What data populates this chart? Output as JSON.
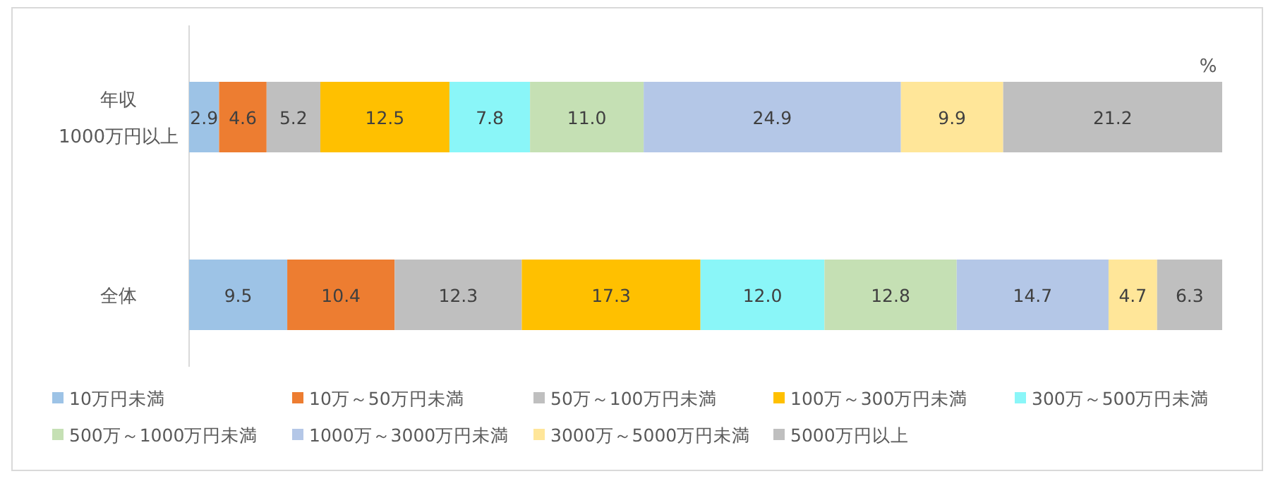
{
  "chart_data": {
    "type": "bar",
    "orientation": "horizontal",
    "stacked": true,
    "categories": [
      "年収\n1000万円以上",
      "全体"
    ],
    "series": [
      {
        "name": "10万円未満",
        "color": "#9dc3e6",
        "values": [
          2.9,
          9.5
        ],
        "value_labels": [
          "2.9",
          "9.5"
        ]
      },
      {
        "name": "10万～50万円未満",
        "color": "#ed7d31",
        "values": [
          4.6,
          10.4
        ],
        "value_labels": [
          "4.6",
          "10.4"
        ]
      },
      {
        "name": "50万～100万円未満",
        "color": "#bfbfbf",
        "values": [
          5.2,
          12.3
        ],
        "value_labels": [
          "5.2",
          "12.3"
        ]
      },
      {
        "name": "100万～300万円未満",
        "color": "#ffc000",
        "values": [
          12.5,
          17.3
        ],
        "value_labels": [
          "12.5",
          "17.3"
        ]
      },
      {
        "name": "300万～500万円未満",
        "color": "#8af6f8",
        "values": [
          7.8,
          12.0
        ],
        "value_labels": [
          "7.8",
          "12.0"
        ]
      },
      {
        "name": "500万～1000万円未満",
        "color": "#c5e0b4",
        "values": [
          11.0,
          12.8
        ],
        "value_labels": [
          "11.0",
          "12.8"
        ]
      },
      {
        "name": "1000万～3000万円未満",
        "color": "#b4c7e7",
        "values": [
          24.9,
          14.7
        ],
        "value_labels": [
          "24.9",
          "14.7"
        ]
      },
      {
        "name": "3000万～5000万円未満",
        "color": "#ffe699",
        "values": [
          9.9,
          4.7
        ],
        "value_labels": [
          "9.9",
          "4.7"
        ]
      },
      {
        "name": "5000万円以上",
        "color": "#bfbfbf",
        "values": [
          21.2,
          6.3
        ],
        "value_labels": [
          "21.2",
          "6.3"
        ]
      }
    ],
    "xlim": [
      0,
      100
    ],
    "tick_labels": "y",
    "legend": "bottom",
    "annotations": [
      "%"
    ]
  }
}
